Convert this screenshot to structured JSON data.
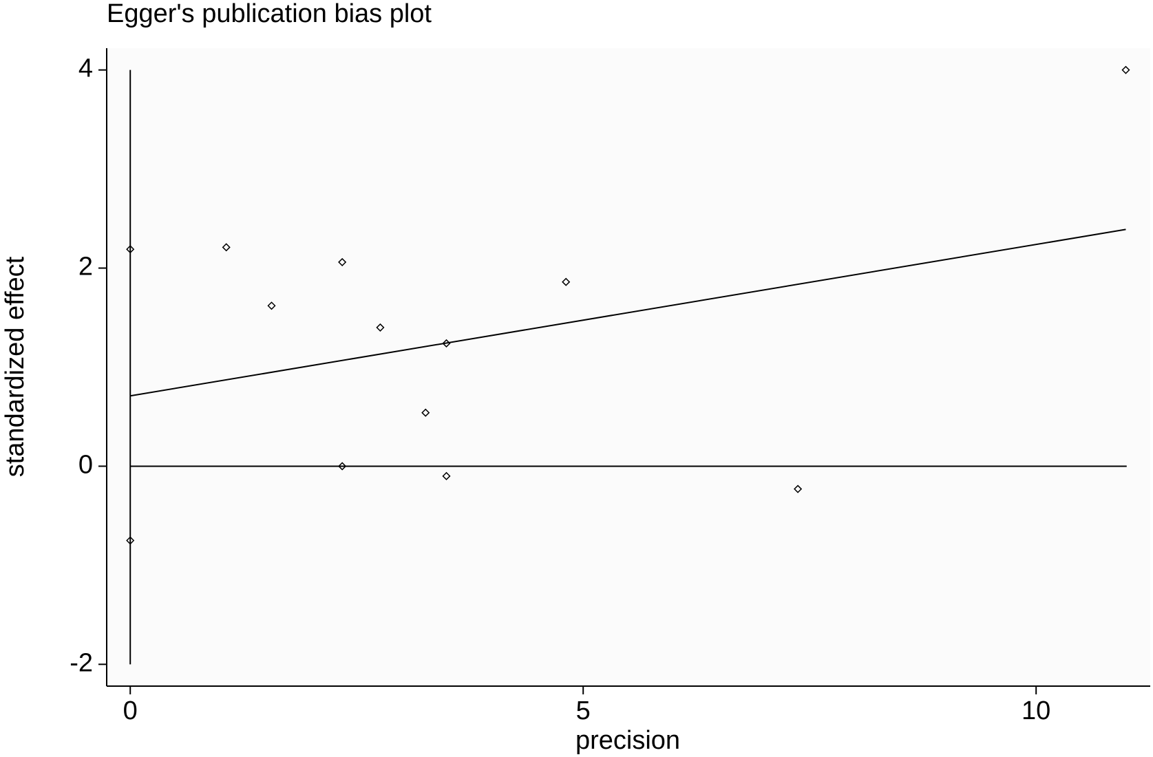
{
  "chart_data": {
    "type": "scatter",
    "title": "Egger's publication bias plot",
    "x_label": "precision",
    "y_label": "standardized effect",
    "x": [
      0,
      0,
      1.06,
      1.56,
      2.34,
      2.34,
      2.76,
      3.26,
      3.49,
      3.49,
      4.81,
      7.37,
      10.99
    ],
    "y": [
      2.19,
      -0.75,
      2.21,
      1.62,
      2.06,
      0.0,
      1.4,
      0.54,
      1.24,
      -0.1,
      1.86,
      -0.23,
      4.0
    ],
    "color": "#000000",
    "lines": [
      {
        "x": [
          0,
          10.99
        ],
        "y": [
          0.71,
          2.39
        ]
      },
      {
        "x": [
          0,
          0
        ],
        "y": [
          -2,
          4
        ]
      },
      {
        "x": [
          0,
          11
        ],
        "y": [
          0,
          0
        ]
      }
    ],
    "xlim": [
      -0.26,
      11.26
    ],
    "ylim": [
      -2.22,
      4.22
    ],
    "xticks": [
      0,
      5,
      10
    ],
    "yticks": [
      -2,
      0,
      2,
      4
    ],
    "grid": false
  }
}
